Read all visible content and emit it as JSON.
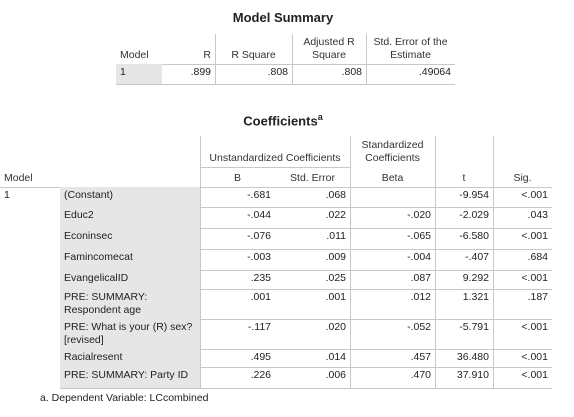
{
  "model_summary": {
    "title": "Model Summary",
    "headers": [
      "Model",
      "R",
      "R Square",
      "Adjusted R Square",
      "Std. Error of the Estimate"
    ],
    "rows": [
      [
        "1",
        ".899",
        ".808",
        ".808",
        ".49064"
      ]
    ]
  },
  "coefficients": {
    "title": "Coefficients",
    "title_note": "a",
    "group_headers": [
      "Unstandardized Coefficients",
      "Standardized Coefficients"
    ],
    "headers": [
      "Model",
      "B",
      "Std. Error",
      "Beta",
      "t",
      "Sig."
    ],
    "model": "1",
    "rows": [
      [
        "(Constant)",
        "-.681",
        ".068",
        null,
        "-9.954",
        "<.001"
      ],
      [
        "Educ2",
        "-.044",
        ".022",
        "-.020",
        "-2.029",
        ".043"
      ],
      [
        "Econinsec",
        "-.076",
        ".011",
        "-.065",
        "-6.580",
        "<.001"
      ],
      [
        "Famincomecat",
        "-.003",
        ".009",
        "-.004",
        "-.407",
        ".684"
      ],
      [
        "EvangelicalID",
        ".235",
        ".025",
        ".087",
        "9.292",
        "<.001"
      ],
      [
        "PRE: SUMMARY: Respondent age",
        ".001",
        ".001",
        ".012",
        "1.321",
        ".187"
      ],
      [
        "PRE: What is your (R) sex? [revised]",
        "-.117",
        ".020",
        "-.052",
        "-5.791",
        "<.001"
      ],
      [
        "Racialresent",
        ".495",
        ".014",
        ".457",
        "36.480",
        "<.001"
      ],
      [
        "PRE: SUMMARY: Party ID",
        ".226",
        ".006",
        ".470",
        "37.910",
        "<.001"
      ]
    ],
    "footnote": "a. Dependent Variable: LCcombined"
  }
}
